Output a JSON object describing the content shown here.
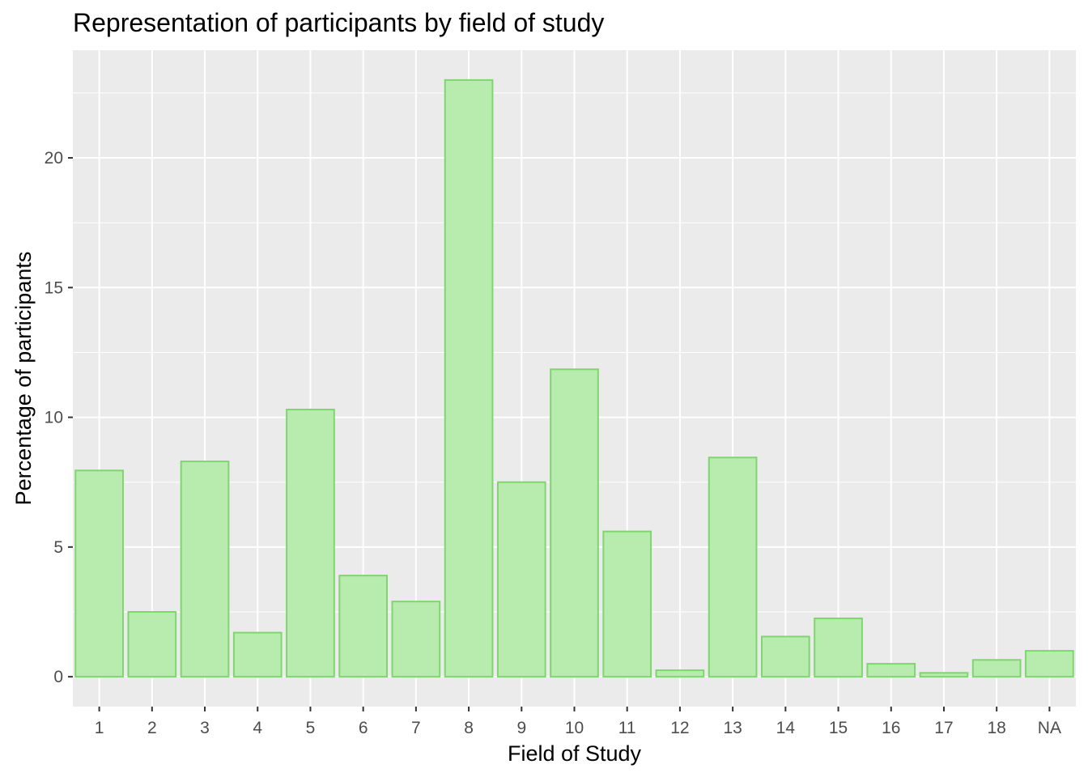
{
  "chart_data": {
    "type": "bar",
    "title": "Representation of participants by field of study",
    "xlabel": "Field of Study",
    "ylabel": "Percentage of participants",
    "categories": [
      "1",
      "2",
      "3",
      "4",
      "5",
      "6",
      "7",
      "8",
      "9",
      "10",
      "11",
      "12",
      "13",
      "14",
      "15",
      "16",
      "17",
      "18",
      "NA"
    ],
    "values": [
      7.95,
      2.5,
      8.3,
      1.7,
      10.3,
      3.9,
      2.9,
      23.0,
      7.5,
      11.85,
      5.6,
      0.25,
      8.45,
      1.55,
      2.25,
      0.5,
      0.15,
      0.65,
      1.0
    ],
    "ylim": [
      -1.15,
      24.15
    ],
    "yticks": [
      0,
      5,
      10,
      15,
      20
    ],
    "grid": true,
    "colors": {
      "panel_bg": "#EBEBEB",
      "grid": "#FFFFFF",
      "bar_fill": "#B8EBAE",
      "bar_stroke": "#7FD66F",
      "tick_text": "#4D4D4D"
    }
  }
}
